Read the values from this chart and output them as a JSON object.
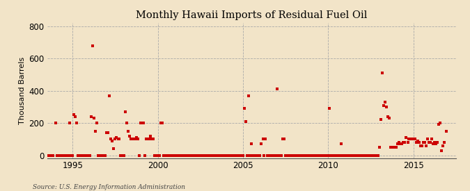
{
  "title": "Monthly Hawaii Imports of Residual Fuel Oil",
  "ylabel": "Thousand Barrels",
  "source": "Source: U.S. Energy Information Administration",
  "background_color": "#f2e4c8",
  "marker_color": "#cc0000",
  "xlim": [
    1993.5,
    2017.5
  ],
  "ylim": [
    -20,
    820
  ],
  "yticks": [
    0,
    200,
    400,
    600,
    800
  ],
  "xticks": [
    1995,
    2000,
    2005,
    2010,
    2015
  ],
  "data_points": [
    [
      1993.5,
      0
    ],
    [
      1993.67,
      0
    ],
    [
      1993.83,
      0
    ],
    [
      1994.0,
      200
    ],
    [
      1994.08,
      0
    ],
    [
      1994.17,
      0
    ],
    [
      1994.25,
      0
    ],
    [
      1994.33,
      0
    ],
    [
      1994.42,
      0
    ],
    [
      1994.5,
      0
    ],
    [
      1994.58,
      0
    ],
    [
      1994.67,
      0
    ],
    [
      1994.75,
      0
    ],
    [
      1994.83,
      200
    ],
    [
      1994.92,
      0
    ],
    [
      1995.0,
      0
    ],
    [
      1995.08,
      250
    ],
    [
      1995.17,
      240
    ],
    [
      1995.25,
      200
    ],
    [
      1995.33,
      0
    ],
    [
      1995.42,
      0
    ],
    [
      1995.5,
      0
    ],
    [
      1995.58,
      0
    ],
    [
      1995.67,
      0
    ],
    [
      1995.75,
      0
    ],
    [
      1995.83,
      0
    ],
    [
      1995.92,
      0
    ],
    [
      1996.0,
      0
    ],
    [
      1996.08,
      240
    ],
    [
      1996.17,
      680
    ],
    [
      1996.25,
      230
    ],
    [
      1996.33,
      150
    ],
    [
      1996.42,
      200
    ],
    [
      1996.5,
      0
    ],
    [
      1996.58,
      0
    ],
    [
      1996.67,
      0
    ],
    [
      1996.75,
      0
    ],
    [
      1996.83,
      0
    ],
    [
      1996.92,
      0
    ],
    [
      1997.0,
      140
    ],
    [
      1997.08,
      140
    ],
    [
      1997.17,
      370
    ],
    [
      1997.25,
      100
    ],
    [
      1997.33,
      90
    ],
    [
      1997.42,
      40
    ],
    [
      1997.5,
      100
    ],
    [
      1997.58,
      110
    ],
    [
      1997.67,
      100
    ],
    [
      1997.75,
      100
    ],
    [
      1997.83,
      0
    ],
    [
      1997.92,
      0
    ],
    [
      1998.0,
      0
    ],
    [
      1998.08,
      270
    ],
    [
      1998.17,
      200
    ],
    [
      1998.25,
      150
    ],
    [
      1998.33,
      120
    ],
    [
      1998.42,
      100
    ],
    [
      1998.5,
      100
    ],
    [
      1998.58,
      100
    ],
    [
      1998.67,
      100
    ],
    [
      1998.75,
      110
    ],
    [
      1998.83,
      100
    ],
    [
      1998.92,
      0
    ],
    [
      1999.0,
      200
    ],
    [
      1999.08,
      200
    ],
    [
      1999.17,
      200
    ],
    [
      1999.25,
      0
    ],
    [
      1999.33,
      100
    ],
    [
      1999.42,
      100
    ],
    [
      1999.5,
      100
    ],
    [
      1999.58,
      120
    ],
    [
      1999.67,
      100
    ],
    [
      1999.75,
      100
    ],
    [
      1999.83,
      0
    ],
    [
      1999.92,
      0
    ],
    [
      2000.0,
      0
    ],
    [
      2000.08,
      0
    ],
    [
      2000.17,
      200
    ],
    [
      2000.25,
      200
    ],
    [
      2000.33,
      0
    ],
    [
      2000.42,
      0
    ],
    [
      2000.5,
      0
    ],
    [
      2000.58,
      0
    ],
    [
      2000.67,
      0
    ],
    [
      2000.75,
      0
    ],
    [
      2000.83,
      0
    ],
    [
      2000.92,
      0
    ],
    [
      2001.0,
      0
    ],
    [
      2001.08,
      0
    ],
    [
      2001.17,
      0
    ],
    [
      2001.25,
      0
    ],
    [
      2001.33,
      0
    ],
    [
      2001.42,
      0
    ],
    [
      2001.5,
      0
    ],
    [
      2001.58,
      0
    ],
    [
      2001.67,
      0
    ],
    [
      2001.75,
      0
    ],
    [
      2001.83,
      0
    ],
    [
      2001.92,
      0
    ],
    [
      2002.0,
      0
    ],
    [
      2002.08,
      0
    ],
    [
      2002.17,
      0
    ],
    [
      2002.25,
      0
    ],
    [
      2002.33,
      0
    ],
    [
      2002.42,
      0
    ],
    [
      2002.5,
      0
    ],
    [
      2002.58,
      0
    ],
    [
      2002.67,
      0
    ],
    [
      2002.75,
      0
    ],
    [
      2002.83,
      0
    ],
    [
      2002.92,
      0
    ],
    [
      2003.0,
      0
    ],
    [
      2003.08,
      0
    ],
    [
      2003.17,
      0
    ],
    [
      2003.25,
      0
    ],
    [
      2003.33,
      0
    ],
    [
      2003.42,
      0
    ],
    [
      2003.5,
      0
    ],
    [
      2003.58,
      0
    ],
    [
      2003.67,
      0
    ],
    [
      2003.75,
      0
    ],
    [
      2003.83,
      0
    ],
    [
      2003.92,
      0
    ],
    [
      2004.0,
      0
    ],
    [
      2004.08,
      0
    ],
    [
      2004.17,
      0
    ],
    [
      2004.25,
      0
    ],
    [
      2004.33,
      0
    ],
    [
      2004.42,
      0
    ],
    [
      2004.5,
      0
    ],
    [
      2004.58,
      0
    ],
    [
      2004.67,
      0
    ],
    [
      2004.75,
      0
    ],
    [
      2004.83,
      0
    ],
    [
      2004.92,
      0
    ],
    [
      2005.0,
      0
    ],
    [
      2005.08,
      290
    ],
    [
      2005.17,
      210
    ],
    [
      2005.25,
      0
    ],
    [
      2005.33,
      370
    ],
    [
      2005.42,
      0
    ],
    [
      2005.5,
      70
    ],
    [
      2005.58,
      0
    ],
    [
      2005.67,
      0
    ],
    [
      2005.75,
      0
    ],
    [
      2005.83,
      0
    ],
    [
      2005.92,
      0
    ],
    [
      2006.0,
      0
    ],
    [
      2006.08,
      70
    ],
    [
      2006.17,
      100
    ],
    [
      2006.25,
      0
    ],
    [
      2006.33,
      100
    ],
    [
      2006.42,
      0
    ],
    [
      2006.5,
      0
    ],
    [
      2006.58,
      0
    ],
    [
      2006.67,
      0
    ],
    [
      2006.75,
      0
    ],
    [
      2006.83,
      0
    ],
    [
      2006.92,
      0
    ],
    [
      2007.0,
      410
    ],
    [
      2007.08,
      0
    ],
    [
      2007.17,
      0
    ],
    [
      2007.25,
      0
    ],
    [
      2007.33,
      100
    ],
    [
      2007.42,
      100
    ],
    [
      2007.5,
      0
    ],
    [
      2007.58,
      0
    ],
    [
      2007.67,
      0
    ],
    [
      2007.75,
      0
    ],
    [
      2007.83,
      0
    ],
    [
      2007.92,
      0
    ],
    [
      2008.0,
      0
    ],
    [
      2008.08,
      0
    ],
    [
      2008.17,
      0
    ],
    [
      2008.25,
      0
    ],
    [
      2008.33,
      0
    ],
    [
      2008.42,
      0
    ],
    [
      2008.5,
      0
    ],
    [
      2008.58,
      0
    ],
    [
      2008.67,
      0
    ],
    [
      2008.75,
      0
    ],
    [
      2008.83,
      0
    ],
    [
      2008.92,
      0
    ],
    [
      2009.0,
      0
    ],
    [
      2009.08,
      0
    ],
    [
      2009.17,
      0
    ],
    [
      2009.25,
      0
    ],
    [
      2009.33,
      0
    ],
    [
      2009.42,
      0
    ],
    [
      2009.5,
      0
    ],
    [
      2009.58,
      0
    ],
    [
      2009.67,
      0
    ],
    [
      2009.75,
      0
    ],
    [
      2009.83,
      0
    ],
    [
      2009.92,
      0
    ],
    [
      2010.0,
      0
    ],
    [
      2010.08,
      290
    ],
    [
      2010.17,
      0
    ],
    [
      2010.25,
      0
    ],
    [
      2010.33,
      0
    ],
    [
      2010.42,
      0
    ],
    [
      2010.5,
      0
    ],
    [
      2010.58,
      0
    ],
    [
      2010.67,
      0
    ],
    [
      2010.75,
      70
    ],
    [
      2010.83,
      0
    ],
    [
      2010.92,
      0
    ],
    [
      2011.0,
      0
    ],
    [
      2011.08,
      0
    ],
    [
      2011.17,
      0
    ],
    [
      2011.25,
      0
    ],
    [
      2011.33,
      0
    ],
    [
      2011.42,
      0
    ],
    [
      2011.5,
      0
    ],
    [
      2011.58,
      0
    ],
    [
      2011.67,
      0
    ],
    [
      2011.75,
      0
    ],
    [
      2011.83,
      0
    ],
    [
      2011.92,
      0
    ],
    [
      2012.0,
      0
    ],
    [
      2012.08,
      0
    ],
    [
      2012.17,
      0
    ],
    [
      2012.25,
      0
    ],
    [
      2012.33,
      0
    ],
    [
      2012.42,
      0
    ],
    [
      2012.5,
      0
    ],
    [
      2012.58,
      0
    ],
    [
      2012.67,
      0
    ],
    [
      2012.75,
      0
    ],
    [
      2012.83,
      0
    ],
    [
      2012.92,
      0
    ],
    [
      2013.0,
      50
    ],
    [
      2013.08,
      220
    ],
    [
      2013.17,
      510
    ],
    [
      2013.25,
      310
    ],
    [
      2013.33,
      330
    ],
    [
      2013.42,
      300
    ],
    [
      2013.5,
      240
    ],
    [
      2013.58,
      230
    ],
    [
      2013.67,
      50
    ],
    [
      2013.75,
      50
    ],
    [
      2013.83,
      50
    ],
    [
      2013.92,
      50
    ],
    [
      2014.0,
      50
    ],
    [
      2014.08,
      70
    ],
    [
      2014.17,
      80
    ],
    [
      2014.25,
      70
    ],
    [
      2014.33,
      70
    ],
    [
      2014.42,
      80
    ],
    [
      2014.5,
      80
    ],
    [
      2014.58,
      110
    ],
    [
      2014.67,
      80
    ],
    [
      2014.75,
      100
    ],
    [
      2014.83,
      100
    ],
    [
      2014.92,
      100
    ],
    [
      2015.0,
      100
    ],
    [
      2015.08,
      100
    ],
    [
      2015.17,
      80
    ],
    [
      2015.25,
      90
    ],
    [
      2015.33,
      80
    ],
    [
      2015.42,
      60
    ],
    [
      2015.5,
      60
    ],
    [
      2015.58,
      80
    ],
    [
      2015.67,
      80
    ],
    [
      2015.75,
      60
    ],
    [
      2015.83,
      100
    ],
    [
      2015.92,
      80
    ],
    [
      2016.0,
      80
    ],
    [
      2016.08,
      100
    ],
    [
      2016.17,
      70
    ],
    [
      2016.25,
      80
    ],
    [
      2016.33,
      70
    ],
    [
      2016.42,
      80
    ],
    [
      2016.5,
      190
    ],
    [
      2016.58,
      200
    ],
    [
      2016.67,
      30
    ],
    [
      2016.75,
      60
    ],
    [
      2016.83,
      80
    ],
    [
      2016.92,
      150
    ]
  ]
}
